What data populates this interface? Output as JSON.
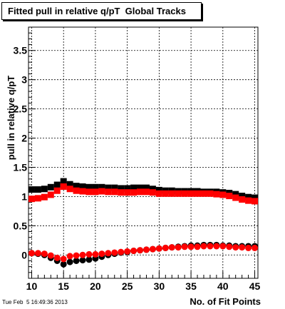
{
  "chart_data": {
    "type": "scatter",
    "title": "Fitted pull in relative q/pT  Global Tracks",
    "xlabel": "No. of Fit Points",
    "ylabel": "pull in relative q/pT",
    "xlim": [
      9.5,
      45.5
    ],
    "ylim": [
      -0.4,
      3.9
    ],
    "x_ticks": [
      10,
      15,
      20,
      25,
      30,
      35,
      40,
      45
    ],
    "y_ticks": [
      0,
      0.5,
      1,
      1.5,
      2,
      2.5,
      3,
      3.5
    ],
    "grid": true,
    "x": [
      10,
      11,
      12,
      13,
      14,
      15,
      16,
      17,
      18,
      19,
      20,
      21,
      22,
      23,
      24,
      25,
      26,
      27,
      28,
      29,
      30,
      31,
      32,
      33,
      34,
      35,
      36,
      37,
      38,
      39,
      40,
      41,
      42,
      43,
      44,
      45
    ],
    "series": [
      {
        "marker": "square",
        "color": "#000000",
        "values": [
          1.12,
          1.12,
          1.13,
          1.16,
          1.2,
          1.26,
          1.21,
          1.18,
          1.17,
          1.16,
          1.16,
          1.16,
          1.15,
          1.15,
          1.14,
          1.14,
          1.15,
          1.15,
          1.15,
          1.13,
          1.11,
          1.1,
          1.1,
          1.09,
          1.09,
          1.09,
          1.09,
          1.08,
          1.08,
          1.08,
          1.07,
          1.06,
          1.04,
          1.01,
          0.99,
          0.98
        ]
      },
      {
        "marker": "square",
        "color": "#ff0000",
        "values": [
          0.96,
          0.97,
          0.99,
          1.03,
          1.1,
          1.17,
          1.13,
          1.1,
          1.09,
          1.08,
          1.08,
          1.09,
          1.08,
          1.08,
          1.07,
          1.07,
          1.07,
          1.08,
          1.08,
          1.07,
          1.05,
          1.05,
          1.05,
          1.05,
          1.05,
          1.05,
          1.05,
          1.05,
          1.05,
          1.04,
          1.03,
          1.01,
          0.98,
          0.95,
          0.93,
          0.92
        ]
      },
      {
        "marker": "circle",
        "color": "#000000",
        "values": [
          0.03,
          0.02,
          0.0,
          -0.05,
          -0.1,
          -0.16,
          -0.12,
          -0.1,
          -0.09,
          -0.08,
          -0.06,
          -0.03,
          -0.0,
          0.02,
          0.04,
          0.05,
          0.07,
          0.08,
          0.09,
          0.1,
          0.11,
          0.12,
          0.13,
          0.14,
          0.15,
          0.16,
          0.16,
          0.17,
          0.17,
          0.17,
          0.16,
          0.16,
          0.15,
          0.15,
          0.15,
          0.15
        ]
      },
      {
        "marker": "circle",
        "color": "#ff0000",
        "values": [
          0.03,
          0.03,
          0.02,
          -0.01,
          -0.05,
          -0.07,
          -0.02,
          -0.01,
          0.0,
          0.01,
          0.01,
          0.02,
          0.03,
          0.04,
          0.05,
          0.06,
          0.07,
          0.08,
          0.09,
          0.1,
          0.11,
          0.12,
          0.13,
          0.13,
          0.14,
          0.14,
          0.14,
          0.15,
          0.15,
          0.15,
          0.15,
          0.14,
          0.13,
          0.13,
          0.12,
          0.12
        ]
      }
    ]
  },
  "footer": {
    "timestamp": "Tue Feb  5 16:49:36 2013"
  }
}
